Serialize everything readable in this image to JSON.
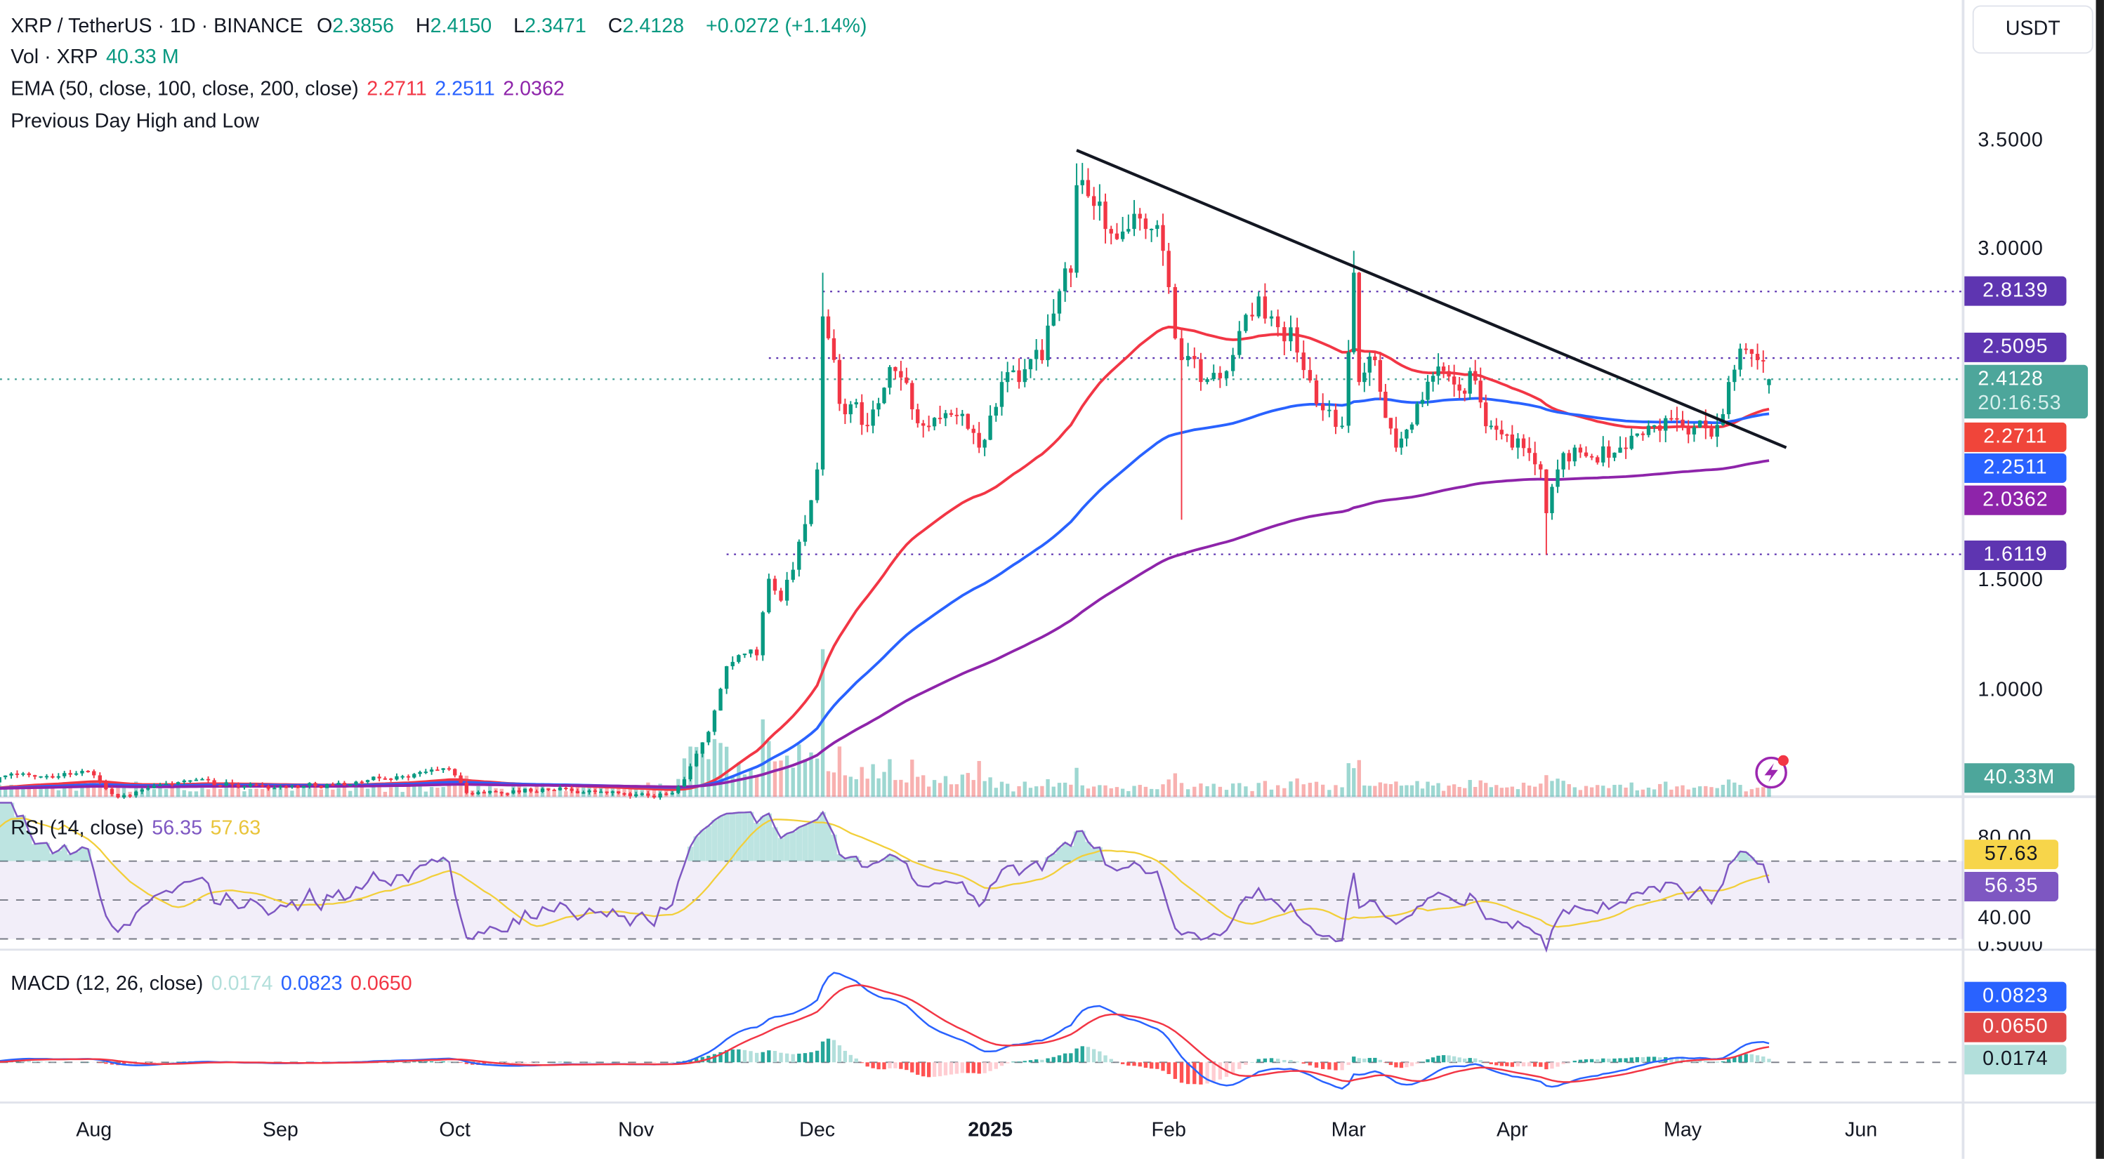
{
  "header": {
    "symbol": "XRP / TetherUS · 1D · BINANCE",
    "open_label": "O",
    "open": "2.3856",
    "high_label": "H",
    "high": "2.4150",
    "low_label": "L",
    "low": "2.3471",
    "close_label": "C",
    "close": "2.4128",
    "change": "+0.0272 (+1.14%)"
  },
  "volume_legend": {
    "label": "Vol · XRP",
    "value": "40.33 M"
  },
  "ema_legend": {
    "label": "EMA (50, close, 100, close, 200, close)",
    "v50": "2.2711",
    "v100": "2.2511",
    "v200": "2.0362"
  },
  "pdhl_legend": {
    "label": "Previous Day High and Low"
  },
  "rsi_legend": {
    "label": "RSI (14, close)",
    "rsi": "56.35",
    "ma": "57.63"
  },
  "macd_legend": {
    "label": "MACD (12, 26, close)",
    "hist": "0.0174",
    "macd": "0.0823",
    "signal": "0.0650"
  },
  "currency_button": "USDT",
  "price_axis": [
    "3.5000",
    "3.0000",
    "1.5000",
    "1.0000"
  ],
  "rsi_axis": [
    "80.00",
    "40.00"
  ],
  "macd_axis": [
    "0.5000"
  ],
  "badges": {
    "pd_high": "2.8139",
    "pd_high2": "2.5095",
    "last": "2.4128",
    "countdown": "20:16:53",
    "ema50": "2.2711",
    "ema100": "2.2511",
    "ema200": "2.0362",
    "pd_low": "1.6119",
    "volume": "40.33M",
    "rsi_ma": "57.63",
    "rsi": "56.35",
    "macd": "0.0823",
    "signal": "0.0650",
    "hist": "0.0174"
  },
  "colors": {
    "up": "#089981",
    "down": "#F23645",
    "ema50": "#F23645",
    "ema100": "#2962FF",
    "ema200": "#8E24AA",
    "level": "#5E35B1",
    "last": "#4DA69B",
    "rsi": "#7E57C2",
    "rsi_ma": "#F7D54A",
    "macd": "#2962FF",
    "signal": "#F23645",
    "hist_up": "#26A69A",
    "hist_down": "#FF5252",
    "trendline": "#131722"
  },
  "chart_data": {
    "type": "candlestick",
    "symbol": "XRPUSDT",
    "interval": "1D",
    "price_scale": "linear",
    "x_ticks": [
      {
        "label": "Aug",
        "date": "2024-08-01"
      },
      {
        "label": "Sep",
        "date": "2024-09-01"
      },
      {
        "label": "Oct",
        "date": "2024-10-01"
      },
      {
        "label": "Nov",
        "date": "2024-11-01"
      },
      {
        "label": "Dec",
        "date": "2024-12-01"
      },
      {
        "label": "2025",
        "date": "2025-01-01"
      },
      {
        "label": "Feb",
        "date": "2025-02-01"
      },
      {
        "label": "Mar",
        "date": "2025-03-01"
      },
      {
        "label": "Apr",
        "date": "2025-04-01"
      },
      {
        "label": "May",
        "date": "2025-05-01"
      },
      {
        "label": "Jun",
        "date": "2025-06-01"
      }
    ],
    "price_path": [
      [
        "2024-07-13",
        0.54
      ],
      [
        "2024-07-17",
        0.6
      ],
      [
        "2024-07-31",
        0.62
      ],
      [
        "2024-08-05",
        0.5
      ],
      [
        "2024-08-15",
        0.57
      ],
      [
        "2024-09-01",
        0.55
      ],
      [
        "2024-09-15",
        0.57
      ],
      [
        "2024-09-30",
        0.63
      ],
      [
        "2024-10-03",
        0.52
      ],
      [
        "2024-10-20",
        0.54
      ],
      [
        "2024-11-04",
        0.5
      ],
      [
        "2024-11-08",
        0.55
      ],
      [
        "2024-11-11",
        0.7
      ],
      [
        "2024-11-13",
        0.8
      ],
      [
        "2024-11-16",
        1.1
      ],
      [
        "2024-11-21",
        1.15
      ],
      [
        "2024-11-23",
        1.5
      ],
      [
        "2024-11-25",
        1.4
      ],
      [
        "2024-11-29",
        1.75
      ],
      [
        "2024-12-01",
        2.0
      ],
      [
        "2024-12-02",
        2.7
      ],
      [
        "2024-12-03",
        2.6
      ],
      [
        "2024-12-05",
        2.3
      ],
      [
        "2024-12-10",
        2.2
      ],
      [
        "2024-12-15",
        2.45
      ],
      [
        "2024-12-20",
        2.2
      ],
      [
        "2024-12-25",
        2.25
      ],
      [
        "2024-12-30",
        2.1
      ],
      [
        "2025-01-03",
        2.4
      ],
      [
        "2025-01-06",
        2.4
      ],
      [
        "2025-01-10",
        2.5
      ],
      [
        "2025-01-15",
        2.9
      ],
      [
        "2025-01-16",
        3.3
      ],
      [
        "2025-01-18",
        3.25
      ],
      [
        "2025-01-21",
        3.1
      ],
      [
        "2025-01-25",
        3.1
      ],
      [
        "2025-01-28",
        3.1
      ],
      [
        "2025-01-31",
        3.0
      ],
      [
        "2025-02-02",
        2.6
      ],
      [
        "2025-02-03",
        2.5
      ],
      [
        "2025-02-06",
        2.4
      ],
      [
        "2025-02-10",
        2.45
      ],
      [
        "2025-02-14",
        2.7
      ],
      [
        "2025-02-17",
        2.7
      ],
      [
        "2025-02-20",
        2.65
      ],
      [
        "2025-02-24",
        2.3
      ],
      [
        "2025-02-28",
        2.2
      ],
      [
        "2025-03-02",
        2.9
      ],
      [
        "2025-03-03",
        2.4
      ],
      [
        "2025-03-06",
        2.5
      ],
      [
        "2025-03-10",
        2.1
      ],
      [
        "2025-03-14",
        2.3
      ],
      [
        "2025-03-19",
        2.45
      ],
      [
        "2025-03-24",
        2.45
      ],
      [
        "2025-03-28",
        2.2
      ],
      [
        "2025-04-01",
        2.1
      ],
      [
        "2025-04-06",
        2.0
      ],
      [
        "2025-04-07",
        1.8
      ],
      [
        "2025-04-09",
        2.0
      ],
      [
        "2025-04-12",
        2.1
      ],
      [
        "2025-04-20",
        2.1
      ],
      [
        "2025-04-25",
        2.2
      ],
      [
        "2025-05-01",
        2.2
      ],
      [
        "2025-05-06",
        2.15
      ],
      [
        "2025-05-09",
        2.4
      ],
      [
        "2025-05-12",
        2.55
      ],
      [
        "2025-05-14",
        2.5
      ],
      [
        "2025-05-16",
        2.4128
      ]
    ],
    "extremes": [
      {
        "date": "2024-12-02",
        "high": 2.9
      },
      {
        "date": "2025-01-16",
        "high": 3.4
      },
      {
        "date": "2025-02-03",
        "low": 1.77
      },
      {
        "date": "2025-03-02",
        "high": 3.0
      },
      {
        "date": "2025-04-07",
        "low": 1.61
      }
    ],
    "last_candle": {
      "date": "2025-05-16",
      "open": 2.3856,
      "high": 2.415,
      "low": 2.3471,
      "close": 2.4128,
      "volume_m": 40.33
    },
    "price_ylim": [
      0.45,
      3.9
    ],
    "levels": [
      {
        "price": 2.8139,
        "from": "2024-12-02"
      },
      {
        "price": 2.5095,
        "from": "2024-11-23"
      },
      {
        "price": 1.6119,
        "from": "2024-11-16"
      }
    ],
    "trendline": [
      {
        "date": "2025-01-16",
        "price": 3.46
      },
      {
        "date": "2025-05-19",
        "price": 2.1
      }
    ],
    "ema_periods": [
      50,
      100,
      200
    ],
    "rsi": {
      "period": 14,
      "ma_period": 14,
      "band": [
        30,
        70
      ],
      "ylim": [
        20,
        100
      ]
    },
    "macd": {
      "fast": 12,
      "slow": 26,
      "signal": 9
    }
  }
}
